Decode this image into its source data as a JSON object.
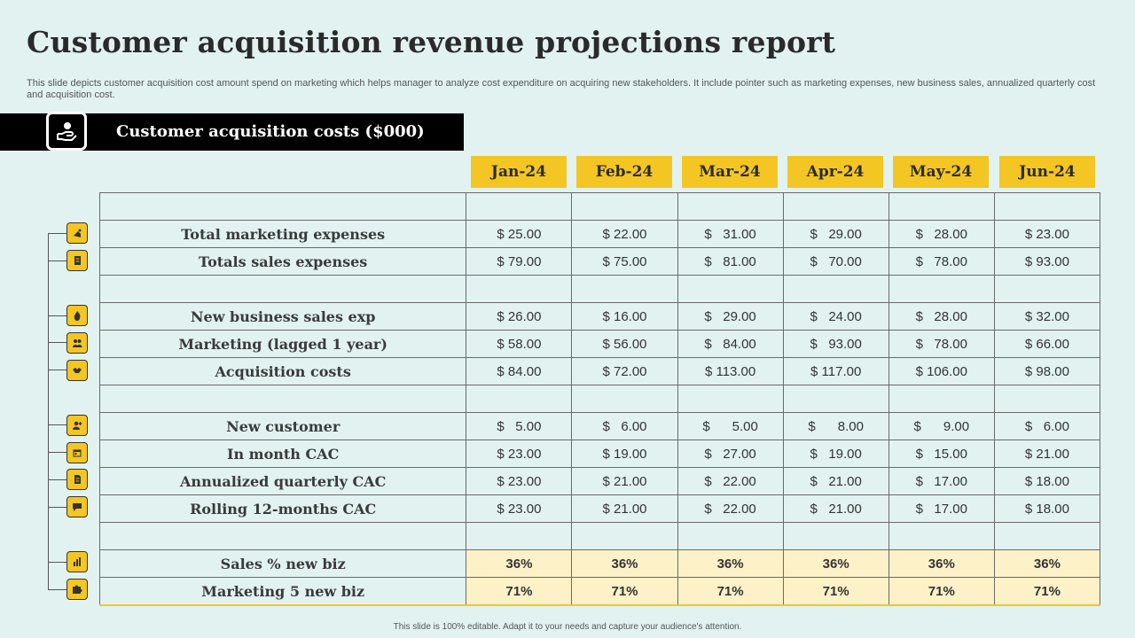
{
  "title": "Customer acquisition revenue projections report",
  "subtitle": "This slide depicts customer acquisition cost amount spend on marketing which helps manager to analyze cost expenditure on acquiring new stakeholders. It include pointer such as marketing expenses, new business sales, annualized quarterly cost and acquisition cost.",
  "section": {
    "title": "Customer acquisition costs ($000)",
    "icon": "hand-money-icon"
  },
  "months": [
    "Jan-24",
    "Feb-24",
    "Mar-24",
    "Apr-24",
    "May-24",
    "Jun-24"
  ],
  "rows": [
    {
      "label": "",
      "values": [
        "",
        "",
        "",
        "",
        "",
        ""
      ]
    },
    {
      "label": "Total marketing expenses",
      "icon": "marketing-icon",
      "values": [
        "$ 25.00",
        "$ 22.00",
        "$   31.00",
        "$   29.00",
        "$   28.00",
        "$ 23.00"
      ]
    },
    {
      "label": "Totals sales expenses",
      "icon": "receipt-icon",
      "values": [
        "$ 79.00",
        "$ 75.00",
        "$   81.00",
        "$   70.00",
        "$   78.00",
        "$ 93.00"
      ]
    },
    {
      "label": "",
      "values": [
        "",
        "",
        "",
        "",
        "",
        ""
      ]
    },
    {
      "label": "New business sales exp",
      "icon": "fire-icon",
      "values": [
        "$ 26.00",
        "$ 16.00",
        "$   29.00",
        "$   24.00",
        "$   28.00",
        "$ 32.00"
      ]
    },
    {
      "label": "Marketing (lagged 1 year)",
      "icon": "team-icon",
      "values": [
        "$ 58.00",
        "$ 56.00",
        "$   84.00",
        "$   93.00",
        "$   78.00",
        "$ 66.00"
      ]
    },
    {
      "label": "Acquisition costs",
      "icon": "handshake-icon",
      "values": [
        "$ 84.00",
        "$ 72.00",
        "$ 113.00",
        "$ 117.00",
        "$ 106.00",
        "$ 98.00"
      ]
    },
    {
      "label": "",
      "values": [
        "",
        "",
        "",
        "",
        "",
        ""
      ]
    },
    {
      "label": "New customer",
      "icon": "user-add-icon",
      "values": [
        "$   5.00",
        "$   6.00",
        "$      5.00",
        "$      8.00",
        "$      9.00",
        "$   6.00"
      ]
    },
    {
      "label": "In month CAC",
      "icon": "calendar-icon",
      "values": [
        "$ 23.00",
        "$ 19.00",
        "$   27.00",
        "$   19.00",
        "$   15.00",
        "$ 21.00"
      ]
    },
    {
      "label": "Annualized quarterly CAC",
      "icon": "document-icon",
      "values": [
        "$ 23.00",
        "$ 21.00",
        "$   22.00",
        "$   21.00",
        "$   17.00",
        "$ 18.00"
      ]
    },
    {
      "label": "Rolling 12-months CAC",
      "icon": "chat-icon",
      "values": [
        "$ 23.00",
        "$ 21.00",
        "$   22.00",
        "$   21.00",
        "$   17.00",
        "$ 18.00"
      ]
    },
    {
      "label": "",
      "values": [
        "",
        "",
        "",
        "",
        "",
        ""
      ]
    },
    {
      "label": "Sales % new biz",
      "icon": "bar-chart-icon",
      "pct": true,
      "values": [
        "36%",
        "36%",
        "36%",
        "36%",
        "36%",
        "36%"
      ]
    },
    {
      "label": "Marketing 5 new biz",
      "icon": "puzzle-icon",
      "pct": true,
      "values": [
        "71%",
        "71%",
        "71%",
        "71%",
        "71%",
        "71%"
      ]
    }
  ],
  "footer": "This slide is 100% editable. Adapt it to your needs and capture your audience's attention.",
  "colors": {
    "accent": "#f3c623",
    "background": "#e1f2f1",
    "pct_fill": "#fdf1c8",
    "bar": "#000000"
  }
}
